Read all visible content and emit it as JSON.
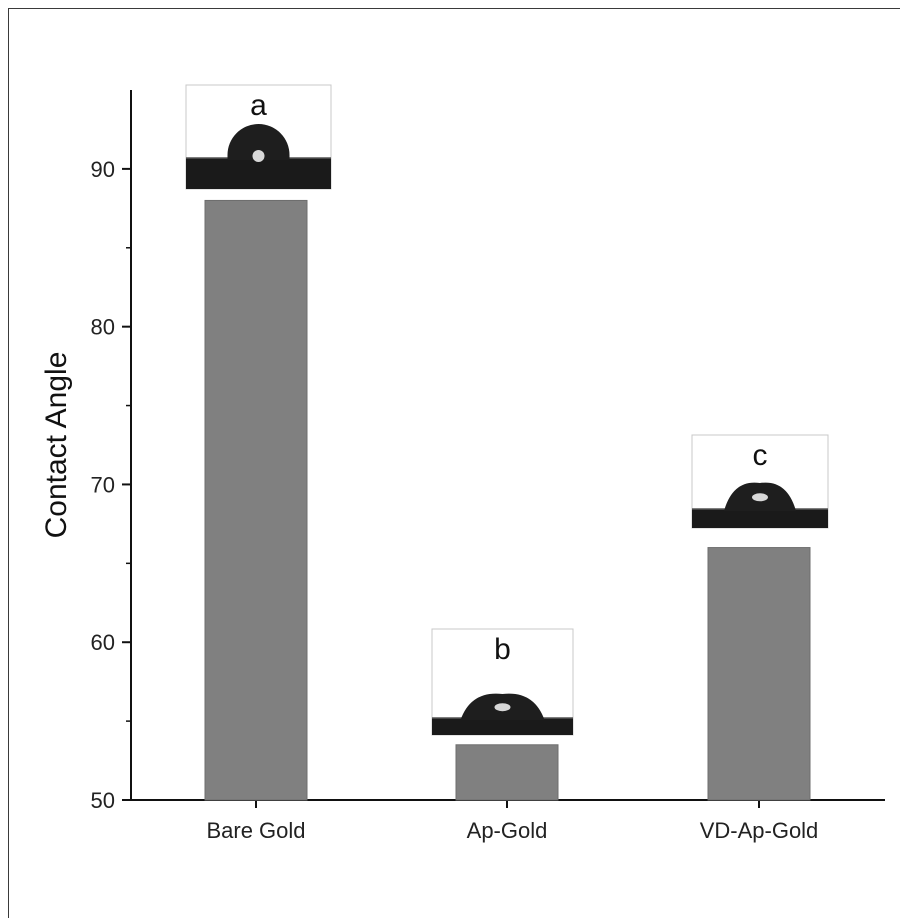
{
  "chart_data": {
    "type": "bar",
    "title": "",
    "xlabel": "",
    "ylabel": "Contact Angle",
    "categories": [
      "Bare Gold",
      "Ap-Gold",
      "VD-Ap-Gold"
    ],
    "values": [
      88,
      53.5,
      66
    ],
    "ylim": [
      50,
      95
    ],
    "yticks": [
      50,
      60,
      70,
      80,
      90
    ],
    "grid": false,
    "bar_color": "#808080",
    "insets": [
      {
        "category": "Bare Gold",
        "label": "a",
        "image": "water-droplet-high-contact-angle"
      },
      {
        "category": "Ap-Gold",
        "label": "b",
        "image": "water-droplet-low-contact-angle"
      },
      {
        "category": "VD-Ap-Gold",
        "label": "c",
        "image": "water-droplet-medium-contact-angle"
      }
    ]
  }
}
